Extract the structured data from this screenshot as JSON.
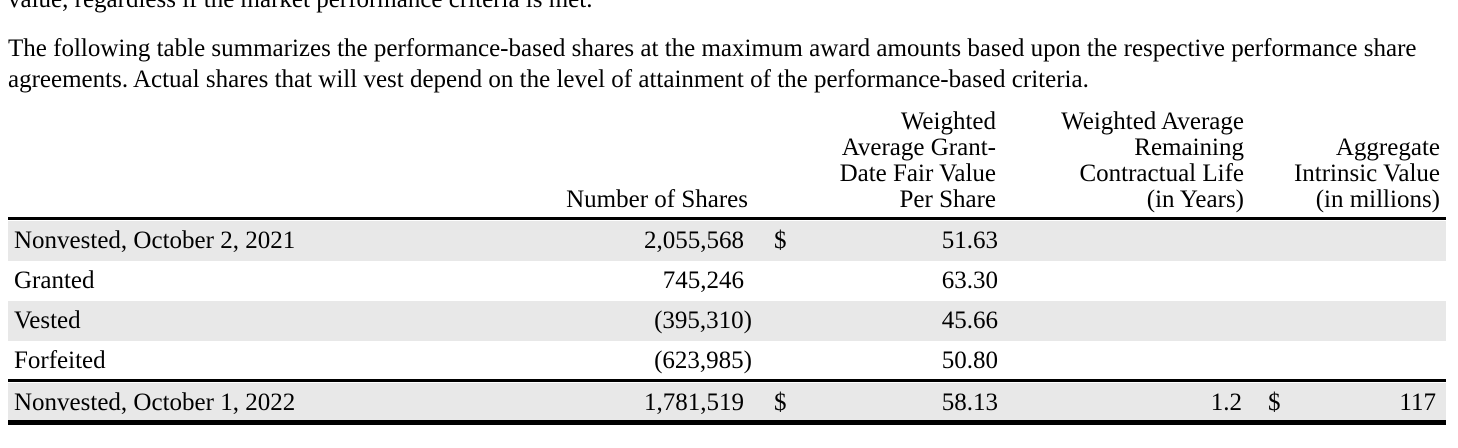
{
  "document": {
    "cutoff_text": "value, regardless if the market performance criteria is met.",
    "intro_paragraph": "The following table summarizes the performance-based shares at the maximum award amounts based upon the respective performance share agreements. Actual shares that will vest depend on the level of attainment of the performance-based criteria."
  },
  "table": {
    "headers": {
      "shares": "Number of Shares",
      "fair_value": "Weighted\nAverage Grant-\nDate Fair Value\nPer Share",
      "life": "Weighted Average\nRemaining\nContractual Life\n(in Years)",
      "intrinsic": "Aggregate\nIntrinsic Value\n(in millions)"
    },
    "rows": [
      {
        "label": "Nonvested, October 2, 2021",
        "shares": "2,055,568",
        "dollar1": "$",
        "fair_value": "51.63",
        "life": "",
        "dollar2": "",
        "intrinsic": ""
      },
      {
        "label": "Granted",
        "shares": "745,246",
        "dollar1": "",
        "fair_value": "63.30",
        "life": "",
        "dollar2": "",
        "intrinsic": ""
      },
      {
        "label": "Vested",
        "shares": "(395,310)",
        "dollar1": "",
        "fair_value": "45.66",
        "life": "",
        "dollar2": "",
        "intrinsic": ""
      },
      {
        "label": "Forfeited",
        "shares": "(623,985)",
        "dollar1": "",
        "fair_value": "50.80",
        "life": "",
        "dollar2": "",
        "intrinsic": ""
      },
      {
        "label": "Nonvested, October 1, 2022",
        "shares": "1,781,519",
        "dollar1": "$",
        "fair_value": "58.13",
        "life": "1.2",
        "dollar2": "$",
        "intrinsic": "117"
      }
    ]
  }
}
